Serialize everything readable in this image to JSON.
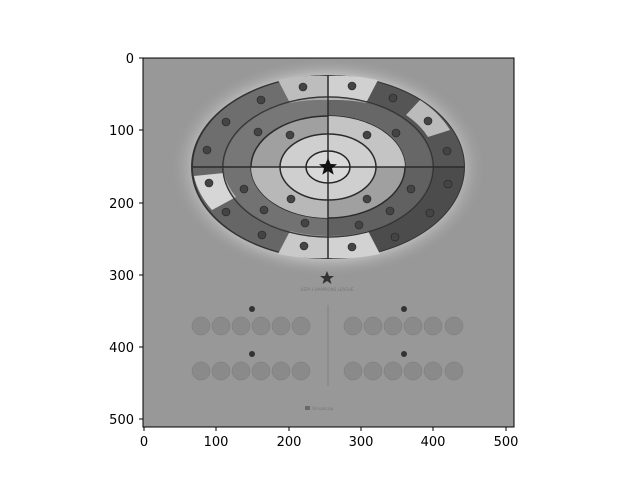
{
  "figure": {
    "x_ticks": [
      "0",
      "100",
      "200",
      "300",
      "400",
      "500"
    ],
    "y_ticks": [
      "0",
      "100",
      "200",
      "300",
      "400",
      "500"
    ]
  },
  "image": {
    "colormap": "gray",
    "poster_title": "UEFA CHAMPIONS LEAGUE",
    "footer_brand": "Visualcap"
  }
}
